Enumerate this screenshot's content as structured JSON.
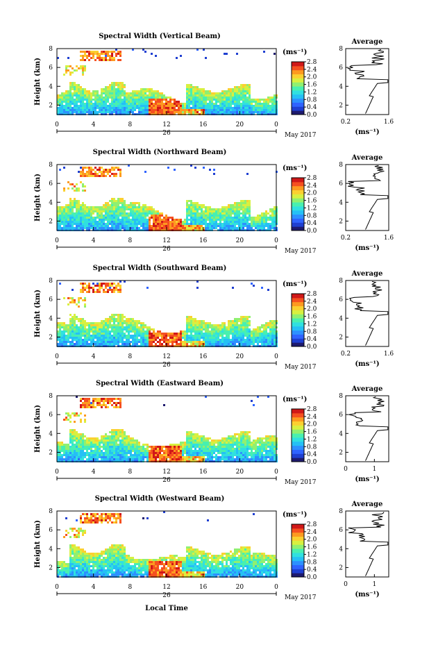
{
  "figure": {
    "footer_xlabel": "Local Time",
    "date_label": "May 2017",
    "day_label": "26",
    "colorbar_unit": "(ms⁻¹)",
    "avg_title": "Average",
    "avg_xlabel": "(ms⁻¹)",
    "main_ylabel": "Height (km)"
  },
  "colors": {
    "scale": [
      "#1e1a6e",
      "#1f3fd1",
      "#2f63ff",
      "#2d90ff",
      "#25c0f5",
      "#30e0e0",
      "#48f0b0",
      "#90f070",
      "#d8f040",
      "#fbd030",
      "#fd9a20",
      "#f55020",
      "#d01818"
    ]
  },
  "chart_data": [
    {
      "type": "heatmap",
      "title": "Spectral Width (Vertical Beam)",
      "ylabel": "Height (km)",
      "x_ticks": [
        "0",
        "4",
        "8",
        "12",
        "16",
        "20",
        "0"
      ],
      "y_ticks": [
        "2",
        "4",
        "6",
        "8"
      ],
      "xlim": [
        0,
        24
      ],
      "ylim": [
        1,
        8
      ],
      "colorbar": {
        "ticks": [
          "2.8",
          "2.4",
          "2.0",
          "1.6",
          "1.2",
          "0.8",
          "0.4",
          "0.0"
        ],
        "range": [
          0,
          2.8
        ]
      },
      "average": {
        "title": "Average",
        "x_ticks": [
          "0.2",
          "1.6"
        ],
        "xlim": [
          0.2,
          1.6
        ],
        "y_ticks": [
          "2",
          "4",
          "6",
          "8"
        ],
        "ylim": [
          1,
          8
        ]
      }
    },
    {
      "type": "heatmap",
      "title": "Spectral Width (Northward Beam)",
      "ylabel": "Height (km)",
      "x_ticks": [
        "0",
        "4",
        "8",
        "12",
        "16",
        "20",
        "0"
      ],
      "y_ticks": [
        "2",
        "4",
        "6",
        "8"
      ],
      "xlim": [
        0,
        24
      ],
      "ylim": [
        1,
        8
      ],
      "colorbar": {
        "ticks": [
          "2.8",
          "2.4",
          "2.0",
          "1.6",
          "1.2",
          "0.8",
          "0.4",
          "0.0"
        ],
        "range": [
          0,
          2.8
        ]
      },
      "average": {
        "title": "Average",
        "x_ticks": [
          "0.2",
          "1.6"
        ],
        "xlim": [
          0.2,
          1.6
        ],
        "y_ticks": [
          "2",
          "4",
          "6",
          "8"
        ],
        "ylim": [
          1,
          8
        ]
      }
    },
    {
      "type": "heatmap",
      "title": "Spectral Width (Southward Beam)",
      "ylabel": "Height (km)",
      "x_ticks": [
        "0",
        "4",
        "8",
        "12",
        "16",
        "20",
        "0"
      ],
      "y_ticks": [
        "2",
        "4",
        "6",
        "8"
      ],
      "xlim": [
        0,
        24
      ],
      "ylim": [
        1,
        8
      ],
      "colorbar": {
        "ticks": [
          "2.8",
          "2.4",
          "2.0",
          "1.6",
          "1.2",
          "0.8",
          "0.4",
          "0.0"
        ],
        "range": [
          0,
          2.8
        ]
      },
      "average": {
        "title": "Average",
        "x_ticks": [
          "0.2",
          "1.6"
        ],
        "xlim": [
          0.2,
          1.6
        ],
        "y_ticks": [
          "2",
          "4",
          "6",
          "8"
        ],
        "ylim": [
          1,
          8
        ]
      }
    },
    {
      "type": "heatmap",
      "title": "Spectral Width (Eastward Beam)",
      "ylabel": "Height (km)",
      "x_ticks": [
        "0",
        "4",
        "8",
        "12",
        "16",
        "20",
        "0"
      ],
      "y_ticks": [
        "2",
        "4",
        "6",
        "8"
      ],
      "xlim": [
        0,
        24
      ],
      "ylim": [
        1,
        8
      ],
      "colorbar": {
        "ticks": [
          "2.8",
          "2.4",
          "2.0",
          "1.6",
          "1.2",
          "0.8",
          "0.4",
          "0.0"
        ],
        "range": [
          0,
          2.8
        ]
      },
      "average": {
        "title": "Average",
        "x_ticks": [
          "0",
          "1"
        ],
        "xlim": [
          0,
          1.5
        ],
        "y_ticks": [
          "2",
          "4",
          "6",
          "8"
        ],
        "ylim": [
          1,
          8
        ]
      }
    },
    {
      "type": "heatmap",
      "title": "Spectral Width (Westward Beam)",
      "ylabel": "Height (km)",
      "x_ticks": [
        "0",
        "4",
        "8",
        "12",
        "16",
        "20",
        "0"
      ],
      "y_ticks": [
        "2",
        "4",
        "6",
        "8"
      ],
      "xlim": [
        0,
        24
      ],
      "ylim": [
        1,
        8
      ],
      "colorbar": {
        "ticks": [
          "2.8",
          "2.4",
          "2.0",
          "1.6",
          "1.2",
          "0.8",
          "0.4",
          "0.0"
        ],
        "range": [
          0,
          2.8
        ]
      },
      "average": {
        "title": "Average",
        "x_ticks": [
          "0",
          "1"
        ],
        "xlim": [
          0,
          1.5
        ],
        "y_ticks": [
          "2",
          "4",
          "6",
          "8"
        ],
        "ylim": [
          1,
          8
        ]
      }
    }
  ]
}
